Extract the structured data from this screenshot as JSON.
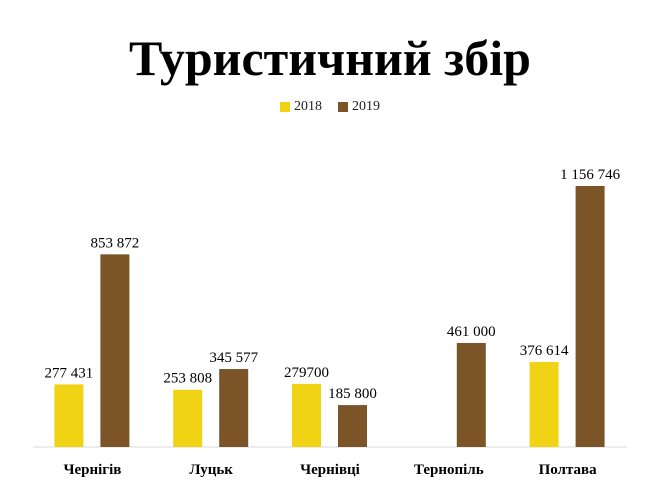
{
  "chart_data": {
    "type": "bar",
    "title": "Туристичний збір",
    "categories": [
      "Чернігів",
      "Луцьк",
      "Чернівці",
      "Тернопіль",
      "Полтава"
    ],
    "series": [
      {
        "name": "2018",
        "color": "#f0d314",
        "values": [
          277431,
          253808,
          279700,
          null,
          376614
        ],
        "labels": [
          "277 431",
          "253 808",
          "279700",
          "",
          "376 614"
        ]
      },
      {
        "name": "2019",
        "color": "#7b5528",
        "values": [
          853872,
          345577,
          185800,
          461000,
          1156746
        ],
        "labels": [
          "853 872",
          "345 577",
          "185 800",
          "461 000",
          "1 156 746"
        ]
      }
    ],
    "xlabel": "",
    "ylabel": "",
    "ylim": [
      0,
      1200000
    ],
    "grid": false,
    "legend_position": "top"
  }
}
